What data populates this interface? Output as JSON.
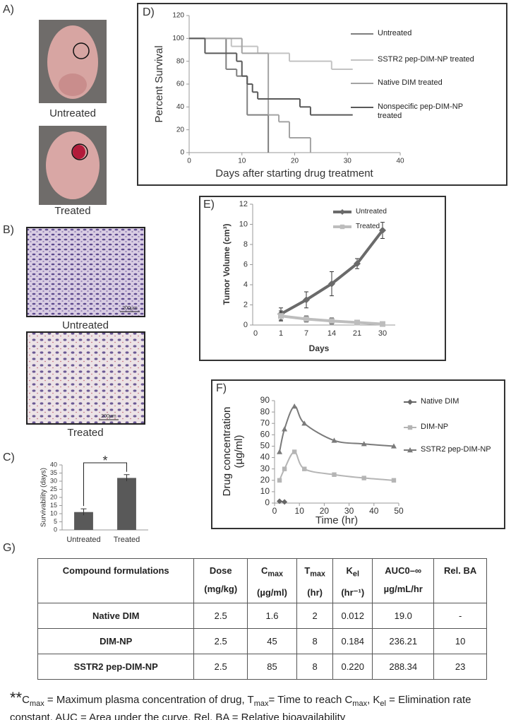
{
  "panel_labels": [
    "A)",
    "B)",
    "C)",
    "D)",
    "E)",
    "F)",
    "G)"
  ],
  "images": {
    "A": {
      "captions": [
        "Untreated",
        "Treated"
      ]
    },
    "B": {
      "captions": [
        "Untreated",
        "Treated"
      ],
      "scale_bar": "200µm"
    }
  },
  "chart_data": [
    {
      "type": "line",
      "step": true,
      "xlabel": "Days after starting drug treatment",
      "ylabel": "Percent Survival",
      "xlim": [
        0,
        40
      ],
      "xticks": [
        0,
        10,
        20,
        30,
        40
      ],
      "ylim": [
        0,
        120
      ],
      "yticks": [
        0,
        20,
        40,
        60,
        80,
        100,
        120
      ],
      "series": [
        {
          "name": "Untreated",
          "color": "#7f7f7f",
          "x": [
            0,
            7,
            9,
            11,
            15
          ],
          "values": [
            100,
            73,
            67,
            33,
            0
          ]
        },
        {
          "name": "SSTR2 pep-DIM-NP treated",
          "color": "#c3c3c3",
          "x": [
            0,
            8,
            13,
            19,
            27,
            31
          ],
          "values": [
            100,
            93,
            87,
            80,
            73,
            73
          ]
        },
        {
          "name": "Native DIM treated",
          "color": "#a3a3a3",
          "x": [
            0,
            10,
            15,
            17,
            19,
            23
          ],
          "values": [
            100,
            87,
            33,
            27,
            13,
            0
          ]
        },
        {
          "name": "Nonspecific pep-DIM-NP treated",
          "color": "#595959",
          "x": [
            0,
            3,
            9,
            10,
            11,
            12,
            13,
            21,
            23,
            31
          ],
          "values": [
            100,
            87,
            80,
            67,
            60,
            53,
            47,
            40,
            33,
            33
          ]
        }
      ]
    },
    {
      "type": "bar",
      "ylabel": "Survivability (days)",
      "categories": [
        "Untreated",
        "Treated"
      ],
      "values": [
        11,
        32
      ],
      "errors": [
        2,
        2
      ],
      "color": "#595959",
      "annotation": "*",
      "ylim": [
        0,
        40
      ],
      "yticks": [
        0,
        5,
        10,
        15,
        20,
        25,
        30,
        35,
        40
      ]
    },
    {
      "type": "line",
      "xlabel": "Days",
      "ylabel": "Tumor Volume (cm³)",
      "categories": [
        "0",
        "1",
        "7",
        "14",
        "21",
        "30"
      ],
      "ylim": [
        0,
        12
      ],
      "yticks": [
        0,
        2,
        4,
        6,
        8,
        10,
        12
      ],
      "series": [
        {
          "name": "Untreated",
          "color": "#6a6a6a",
          "marker": "diamond",
          "values": [
            null,
            1.1,
            2.5,
            4.1,
            6.1,
            9.4
          ],
          "errors": [
            null,
            0.6,
            0.8,
            1.2,
            0.5,
            0.8
          ]
        },
        {
          "name": "Treated",
          "color": "#bdbdbd",
          "marker": "square",
          "values": [
            null,
            0.9,
            0.6,
            0.4,
            0.25,
            0.1
          ],
          "errors": [
            null,
            0.5,
            0.3,
            0.3,
            0.2,
            0.1
          ]
        }
      ]
    },
    {
      "type": "line",
      "smooth": true,
      "xlabel": "Time (hr)",
      "ylabel": "Drug concentration (µg/ml)",
      "xlim": [
        0,
        50
      ],
      "xticks": [
        0,
        10,
        20,
        30,
        40,
        50
      ],
      "ylim": [
        0,
        90
      ],
      "yticks": [
        0,
        10,
        20,
        30,
        40,
        50,
        60,
        70,
        80,
        90
      ],
      "series": [
        {
          "name": "Native DIM",
          "color": "#666666",
          "marker": "diamond",
          "x": [
            2,
            4
          ],
          "values": [
            1.6,
            1
          ]
        },
        {
          "name": "DIM-NP",
          "color": "#b5b5b5",
          "marker": "square",
          "x": [
            2,
            4,
            8,
            12,
            24,
            36,
            48
          ],
          "values": [
            20,
            30,
            45,
            30,
            25,
            22,
            20
          ]
        },
        {
          "name": "SSTR2 pep-DIM-NP",
          "color": "#7a7a7a",
          "marker": "triangle",
          "x": [
            2,
            4,
            8,
            12,
            24,
            36,
            48
          ],
          "values": [
            45,
            65,
            85,
            70,
            55,
            52,
            50
          ]
        }
      ]
    }
  ],
  "table": {
    "header": [
      {
        "text": "Compound formulations"
      },
      {
        "text": "Dose",
        "unit": "(mg/kg)"
      },
      {
        "text": "C",
        "sub": "max",
        "unit": "(µg/ml)"
      },
      {
        "text": "T",
        "sub": "max",
        "unit": "(hr)"
      },
      {
        "text": "K",
        "sub": "el",
        "unit": "(hr⁻¹)"
      },
      {
        "text": "AUC0–∞",
        "unit": "µg/mL/hr"
      },
      {
        "text": "Rel. BA"
      }
    ],
    "rows": [
      [
        "Native DIM",
        "2.5",
        "1.6",
        "2",
        "0.012",
        "19.0",
        "-"
      ],
      [
        "DIM-NP",
        "2.5",
        "45",
        "8",
        "0.184",
        "236.21",
        "10"
      ],
      [
        "SSTR2 pep-DIM-NP",
        "2.5",
        "85",
        "8",
        "0.220",
        "288.34",
        "23"
      ]
    ]
  },
  "footnote": [
    {
      "text": "**",
      "style": "lead"
    },
    {
      "text": "C"
    },
    {
      "text": "max",
      "style": "sub"
    },
    {
      "text": " = Maximum plasma concentration of drug, T"
    },
    {
      "text": "max",
      "style": "sub"
    },
    {
      "text": "= Time to reach C"
    },
    {
      "text": "max",
      "style": "sub"
    },
    {
      "text": ", K"
    },
    {
      "text": "el",
      "style": "sub"
    },
    {
      "text": " = Elimination rate constant,  AUC = Area under the curve, Rel. BA = Relative bioavailability"
    }
  ]
}
